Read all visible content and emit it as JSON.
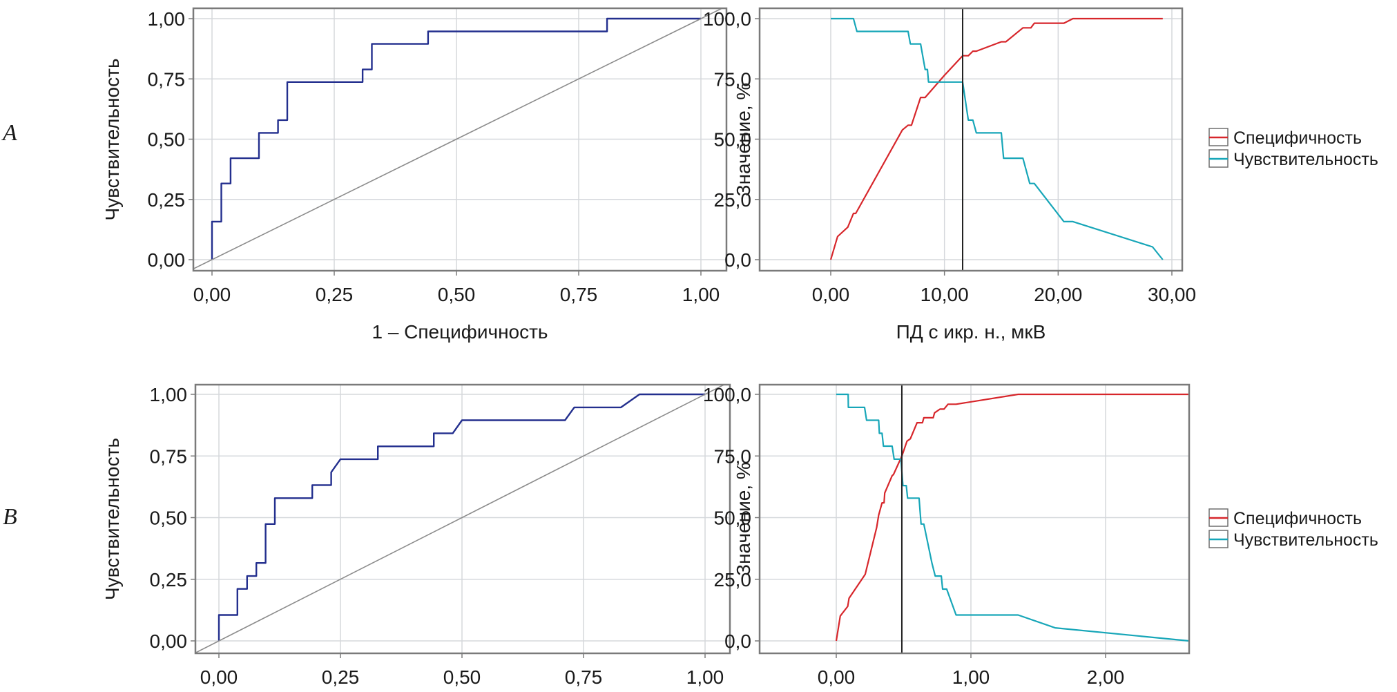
{
  "panels": [
    "A",
    "B"
  ],
  "legend": {
    "items": [
      {
        "label": "Специфичность",
        "color": "#d7262b"
      },
      {
        "label": "Чувствительность",
        "color": "#17a6b8"
      }
    ]
  },
  "colors": {
    "roc": "#232f8e",
    "diagonal": "#8c8c8c",
    "cutoff": "#222222",
    "grid": "#d5d8dc",
    "frame": "#7a7a7a"
  },
  "chart_data": [
    {
      "id": "A-roc",
      "panel": "A",
      "type": "line",
      "title": "",
      "xlabel": "1 – Специфичность",
      "ylabel": "Чувствительность",
      "xlim": [
        0,
        1
      ],
      "ylim": [
        0,
        1
      ],
      "xticks": [
        "0,00",
        "0,25",
        "0,50",
        "0,75",
        "1,00"
      ],
      "yticks": [
        "0,00",
        "0,25",
        "0,50",
        "0,75",
        "1,00"
      ],
      "xtick_values": [
        0,
        0.25,
        0.5,
        0.75,
        1
      ],
      "ytick_values": [
        0,
        0.25,
        0.5,
        0.75,
        1
      ],
      "grid": true,
      "series": [
        {
          "name": "ROC",
          "x": [
            0,
            0,
            0.019,
            0.019,
            0.038,
            0.038,
            0.096,
            0.096,
            0.135,
            0.135,
            0.154,
            0.154,
            0.308,
            0.308,
            0.327,
            0.327,
            0.442,
            0.442,
            0.808,
            0.808,
            1
          ],
          "y": [
            0,
            0.158,
            0.158,
            0.316,
            0.316,
            0.421,
            0.421,
            0.526,
            0.526,
            0.579,
            0.579,
            0.737,
            0.737,
            0.789,
            0.789,
            0.895,
            0.895,
            0.947,
            0.947,
            1,
            1
          ]
        },
        {
          "name": "Reference",
          "x": [
            -0.05,
            1.05
          ],
          "y": [
            -0.05,
            1.05
          ]
        }
      ]
    },
    {
      "id": "A-cutoff",
      "panel": "A",
      "type": "line",
      "xlabel": "ПД с икр. н., мкВ",
      "ylabel": "Значение, %",
      "xlim": [
        0,
        30
      ],
      "ylim": [
        0,
        100
      ],
      "xticks": [
        "0,00",
        "10,00",
        "20,00",
        "30,00"
      ],
      "yticks": [
        "0,0",
        "25,0",
        "50,0",
        "75,0",
        "100,0"
      ],
      "xtick_values": [
        0,
        10,
        20,
        30
      ],
      "ytick_values": [
        0,
        25,
        50,
        75,
        100
      ],
      "grid": true,
      "cutoff": 11.6,
      "legend": "right",
      "series": [
        {
          "name": "Специфичность",
          "x": [
            0,
            0.6,
            1.5,
            2,
            2.2,
            6.3,
            6.8,
            7.1,
            7.9,
            8.3,
            10.0,
            11.6,
            12.1,
            12.5,
            12.8,
            15,
            15.4,
            16.9,
            17.6,
            17.9,
            20.5,
            21.3,
            29.2
          ],
          "y": [
            0,
            9.6,
            13.5,
            19.2,
            19.2,
            53.8,
            55.8,
            55.8,
            67.3,
            67.3,
            76.5,
            84.6,
            84.6,
            86.5,
            86.5,
            90.4,
            90.4,
            96.2,
            96.2,
            98.1,
            98.1,
            100,
            100
          ]
        },
        {
          "name": "Чувствительность",
          "x": [
            0,
            2,
            2.3,
            6.8,
            7.0,
            7.9,
            8.3,
            8.5,
            8.6,
            11.6,
            12.1,
            12.5,
            12.8,
            15,
            15.2,
            16.9,
            17.5,
            17.9,
            20.5,
            21.3,
            28.3,
            29.2
          ],
          "y": [
            100,
            100,
            94.7,
            94.7,
            89.5,
            89.5,
            78.9,
            78.9,
            73.7,
            73.7,
            57.9,
            57.9,
            52.6,
            52.6,
            42.1,
            42.1,
            31.6,
            31.6,
            15.8,
            15.8,
            5.3,
            0
          ]
        }
      ]
    },
    {
      "id": "B-roc",
      "panel": "B",
      "type": "line",
      "xlabel": "",
      "ylabel": "Чувствительность",
      "xlim": [
        0,
        1
      ],
      "ylim": [
        0,
        1
      ],
      "xticks": [
        "0,00",
        "0,25",
        "0,50",
        "0,75",
        "1,00"
      ],
      "yticks": [
        "0,00",
        "0,25",
        "0,50",
        "0,75",
        "1,00"
      ],
      "xtick_values": [
        0,
        0.25,
        0.5,
        0.75,
        1
      ],
      "ytick_values": [
        0,
        0.25,
        0.5,
        0.75,
        1
      ],
      "grid": true,
      "series": [
        {
          "name": "ROC",
          "x": [
            0,
            0,
            0.038,
            0.038,
            0.058,
            0.058,
            0.077,
            0.077,
            0.096,
            0.096,
            0.115,
            0.115,
            0.192,
            0.192,
            0.231,
            0.231,
            0.25,
            0.327,
            0.327,
            0.442,
            0.442,
            0.481,
            0.5,
            0.712,
            0.731,
            0.827,
            0.865,
            1
          ],
          "y": [
            0,
            0.105,
            0.105,
            0.211,
            0.211,
            0.263,
            0.263,
            0.316,
            0.316,
            0.474,
            0.474,
            0.579,
            0.579,
            0.632,
            0.632,
            0.684,
            0.737,
            0.737,
            0.789,
            0.789,
            0.842,
            0.842,
            0.895,
            0.895,
            0.947,
            0.947,
            1,
            1
          ]
        },
        {
          "name": "Reference",
          "x": [
            -0.05,
            1.05
          ],
          "y": [
            -0.05,
            1.05
          ]
        }
      ]
    },
    {
      "id": "B-cutoff",
      "panel": "B",
      "type": "line",
      "xlabel": "",
      "ylabel": "Значение, %",
      "xlim": [
        0,
        2.8
      ],
      "ylim": [
        0,
        100
      ],
      "xticks": [
        "0,00",
        "1,00",
        "2,00"
      ],
      "yticks": [
        "0,0",
        "25,0",
        "50,0",
        "75,0",
        "100,0"
      ],
      "xtick_values": [
        0,
        1,
        2
      ],
      "ytick_values": [
        0,
        25,
        50,
        75,
        100
      ],
      "grid": true,
      "cutoff": 0.487,
      "legend": "right",
      "series": [
        {
          "name": "Специфичность",
          "x": [
            0,
            0.03,
            0.085,
            0.095,
            0.215,
            0.3,
            0.315,
            0.34,
            0.355,
            0.36,
            0.415,
            0.425,
            0.487,
            0.5,
            0.525,
            0.55,
            0.6,
            0.64,
            0.65,
            0.72,
            0.73,
            0.77,
            0.8,
            0.83,
            0.89,
            1.35,
            2.62
          ],
          "y": [
            0,
            10.1,
            14,
            17.3,
            27,
            46,
            51,
            56,
            56,
            60,
            67,
            67.5,
            75,
            77,
            81,
            82,
            88.5,
            88.5,
            90.5,
            90.5,
            92.5,
            94,
            94,
            96,
            96,
            100,
            100
          ]
        },
        {
          "name": "Чувствительность",
          "x": [
            0,
            0.088,
            0.09,
            0.21,
            0.225,
            0.315,
            0.32,
            0.34,
            0.35,
            0.415,
            0.43,
            0.48,
            0.495,
            0.52,
            0.53,
            0.615,
            0.63,
            0.65,
            0.71,
            0.735,
            0.78,
            0.79,
            0.82,
            0.89,
            1.35,
            1.625,
            2.62
          ],
          "y": [
            100,
            100,
            94.7,
            94.7,
            89.5,
            89.5,
            84.2,
            84.2,
            79,
            79,
            73.7,
            73.7,
            63,
            63,
            57.9,
            57.9,
            47.4,
            47.4,
            31.6,
            26.3,
            26.3,
            21,
            21,
            10.5,
            10.5,
            5.3,
            0
          ]
        }
      ]
    }
  ]
}
